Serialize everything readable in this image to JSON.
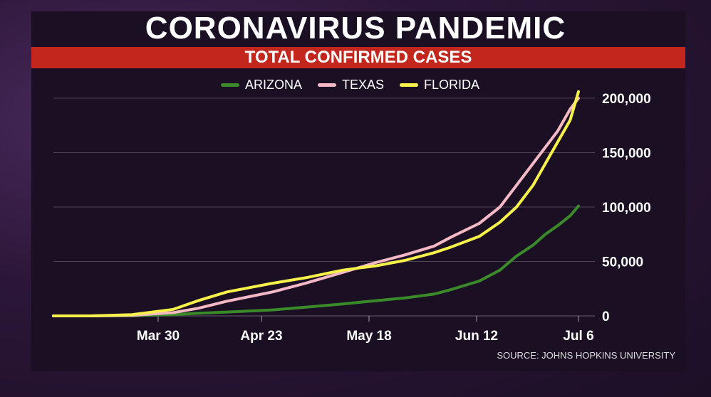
{
  "header": {
    "title": "CORONAVIRUS PANDEMIC",
    "subtitle": "TOTAL CONFIRMED CASES"
  },
  "source": "SOURCE: JOHNS HOPKINS UNIVERSITY",
  "colors": {
    "arizona": "#3a8a2a",
    "texas": "#f4b9c4",
    "florida": "#f7f24a",
    "banner": "#c3261c"
  },
  "chart_data": {
    "type": "line",
    "title": "TOTAL CONFIRMED CASES",
    "x_ticks": [
      "Mar 30",
      "Apr 23",
      "May 18",
      "Jun 12",
      "Jul 6"
    ],
    "x_range": [
      "Mar 1",
      "Jul 6"
    ],
    "ylim": [
      0,
      200000
    ],
    "y_ticks": [
      "0",
      "50,000",
      "100,000",
      "150,000",
      "200,000"
    ],
    "y_tick_values": [
      0,
      50000,
      100000,
      150000,
      200000
    ],
    "grid": true,
    "legend_position": "top-center",
    "x": [
      "Mar 1",
      "Mar 10",
      "Mar 20",
      "Mar 30",
      "Apr 5",
      "Apr 12",
      "Apr 23",
      "May 1",
      "May 10",
      "May 18",
      "May 25",
      "Jun 1",
      "Jun 5",
      "Jun 12",
      "Jun 17",
      "Jun 21",
      "Jun 25",
      "Jun 28",
      "Jul 1",
      "Jul 4",
      "Jul 6"
    ],
    "series": [
      {
        "name": "ARIZONA",
        "values": [
          0,
          0,
          100,
          1200,
          2500,
          3500,
          5500,
          8000,
          11000,
          14000,
          16500,
          20000,
          24000,
          32000,
          42000,
          55000,
          65000,
          75000,
          83000,
          92000,
          101000
        ]
      },
      {
        "name": "TEXAS",
        "values": [
          0,
          0,
          500,
          3000,
          7000,
          13500,
          22000,
          30000,
          40000,
          49000,
          56000,
          64000,
          72000,
          85000,
          100000,
          120000,
          140000,
          155000,
          170000,
          190000,
          200000
        ]
      },
      {
        "name": "FLORIDA",
        "values": [
          0,
          0,
          1200,
          6000,
          14000,
          22000,
          30000,
          35000,
          42000,
          46000,
          51000,
          58000,
          63000,
          73000,
          86000,
          100000,
          120000,
          140000,
          160000,
          180000,
          206000
        ]
      }
    ]
  }
}
